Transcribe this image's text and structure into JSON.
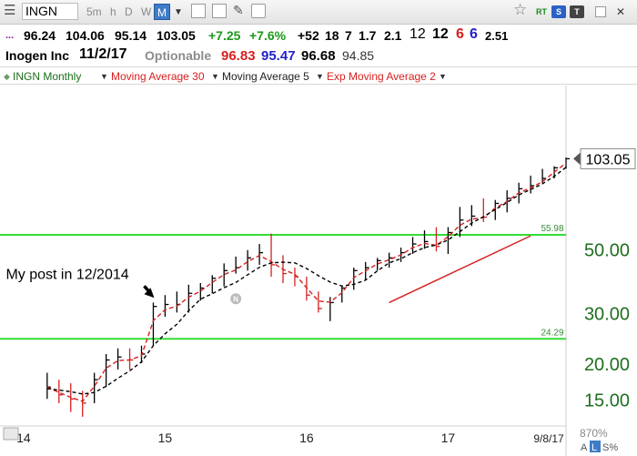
{
  "toolbar": {
    "symbol": "INGN",
    "timeframes": [
      "5m",
      "h",
      "D",
      "W",
      "M"
    ],
    "active_timeframe": "M",
    "pills": [
      "RT",
      "S",
      "T"
    ]
  },
  "quote": {
    "ellipsis": "...",
    "open": "96.24",
    "high": "104.06",
    "low": "95.14",
    "close": "103.05",
    "change": "+7.25",
    "change_pct": "+7.6%",
    "stats": [
      "+52",
      "18",
      "7",
      "1.7",
      "2.1"
    ],
    "big1": "12",
    "big2": "12",
    "red_count": "6",
    "blue_count": "6",
    "ratio": "2.51",
    "company": "Inogen Inc",
    "date": "11/2/17",
    "optionable": "Optionable",
    "p_red": "96.83",
    "p_blue": "95.47",
    "p_black": "96.68",
    "p_gray": "94.85"
  },
  "legend": {
    "title": "INGN Monthly",
    "ma30": "Moving Average 30",
    "ma5": "Moving Average 5",
    "ema2": "Exp Moving Average 2"
  },
  "colors": {
    "green_line": "#33dd33",
    "red": "#d62020",
    "axis_text": "#1f6e1f",
    "price_box_border": "#888888"
  },
  "chart_data": {
    "type": "line",
    "title": "INGN Monthly",
    "y_scale": "log",
    "ylim": [
      12.8,
      180
    ],
    "xlim": [
      "2013-11",
      "2017-11"
    ],
    "x_ticks": [
      {
        "label": "14",
        "x": "2014-01"
      },
      {
        "label": "15",
        "x": "2015-01"
      },
      {
        "label": "16",
        "x": "2016-01"
      },
      {
        "label": "17",
        "x": "2017-01"
      }
    ],
    "y_ticks": [
      "50.00",
      "30.00",
      "20.00",
      "15.00"
    ],
    "y_tick_values": [
      50,
      30,
      20,
      15
    ],
    "last_price_label": "103.05",
    "last_price": 103.05,
    "horizontal_lines": [
      {
        "value": 55.98,
        "label": "55.98"
      },
      {
        "value": 24.29,
        "label": "24.29"
      }
    ],
    "annotation_text": "My post in 12/2014",
    "annotation_date": "2014-12",
    "annotation_price": 33,
    "event_marker": {
      "label": "N",
      "x": "2015-07",
      "y": 33.5
    },
    "date_label": "9/8/17",
    "zoom_label": "870%",
    "scale_modes": [
      "A",
      "L",
      "S%"
    ],
    "trendline": {
      "start": {
        "x": "2016-08",
        "y": 32.5
      },
      "end": {
        "x": "2017-08",
        "y": 55.5
      }
    },
    "x": [
      "2014-03",
      "2014-04",
      "2014-05",
      "2014-06",
      "2014-07",
      "2014-08",
      "2014-09",
      "2014-10",
      "2014-11",
      "2014-12",
      "2015-01",
      "2015-02",
      "2015-03",
      "2015-04",
      "2015-05",
      "2015-06",
      "2015-07",
      "2015-08",
      "2015-09",
      "2015-10",
      "2015-11",
      "2015-12",
      "2016-01",
      "2016-02",
      "2016-03",
      "2016-04",
      "2016-05",
      "2016-06",
      "2016-07",
      "2016-08",
      "2016-09",
      "2016-10",
      "2016-11",
      "2016-12",
      "2017-01",
      "2017-02",
      "2017-03",
      "2017-04",
      "2017-05",
      "2017-06",
      "2017-07",
      "2017-08",
      "2017-09",
      "2017-10",
      "2017-11"
    ],
    "high": [
      18.5,
      17.5,
      17,
      16,
      18.5,
      21.5,
      22.5,
      22.5,
      23,
      32.5,
      34.5,
      35.5,
      37.5,
      38,
      40.5,
      44.5,
      47,
      49.5,
      52,
      56.5,
      47.5,
      43,
      40,
      35.5,
      34,
      37,
      43,
      45,
      46.5,
      48.5,
      50.5,
      55,
      58,
      59.5,
      59.5,
      70,
      71,
      75,
      74,
      80,
      85,
      90,
      95,
      97,
      104.06
    ],
    "low": [
      15,
      14.5,
      13.5,
      13,
      14.5,
      16.5,
      19,
      19,
      20,
      23,
      29,
      30,
      30,
      33,
      35,
      37,
      41,
      42,
      44,
      40,
      38,
      37,
      33,
      30,
      28,
      32.5,
      36,
      39,
      42,
      43,
      45,
      48,
      50,
      49,
      48,
      55,
      60,
      62,
      63,
      67,
      72,
      78,
      85,
      88,
      95.14
    ],
    "close": [
      16.5,
      15.5,
      15,
      14.5,
      17.5,
      20.5,
      21,
      20.5,
      21.5,
      31.5,
      32,
      32,
      35,
      36.5,
      39.5,
      42,
      43,
      46.5,
      48.5,
      44,
      41,
      40,
      34.5,
      31,
      32.5,
      36.5,
      42,
      43,
      45.5,
      46.5,
      48.5,
      52,
      53,
      51,
      57,
      63,
      65,
      64.5,
      72,
      75,
      81,
      83,
      88,
      95.8,
      103.05
    ],
    "series": [
      {
        "name": "Exp Moving Average 2",
        "color": "#d62020",
        "dash": "5,3",
        "values": [
          16.5,
          15.8,
          15.2,
          14.7,
          16.6,
          19.2,
          20.4,
          20.5,
          21.2,
          28.1,
          30.7,
          31.6,
          33.9,
          35.6,
          38.2,
          40.7,
          42.2,
          45.1,
          47.4,
          45.1,
          42.4,
          40.8,
          36.6,
          32.9,
          32.6,
          35.2,
          39.7,
          41.9,
          44.3,
          45.8,
          47.6,
          50.5,
          52.2,
          51.4,
          55.1,
          60.4,
          63.5,
          64.2,
          69.4,
          73.1,
          78.4,
          81.5,
          85.8,
          92.5,
          99.5
        ]
      },
      {
        "name": "Moving Average 5",
        "color": "#000000",
        "dash": "4,3",
        "values": [
          16.3,
          16.1,
          15.9,
          15.6,
          15.8,
          16.6,
          17.7,
          18.8,
          20.2,
          23.0,
          25.3,
          27.3,
          30.4,
          33.4,
          34.9,
          36.6,
          38.2,
          40.6,
          43.1,
          44.7,
          44.9,
          44.7,
          42.7,
          40.3,
          38.3,
          37.1,
          37.6,
          38.9,
          41.9,
          44.7,
          46.2,
          48.5,
          50.5,
          51.6,
          53.7,
          57.4,
          61.5,
          64.7,
          68.6,
          72.5,
          77.1,
          80.5,
          84.3,
          89.4,
          96.2
        ]
      }
    ]
  }
}
